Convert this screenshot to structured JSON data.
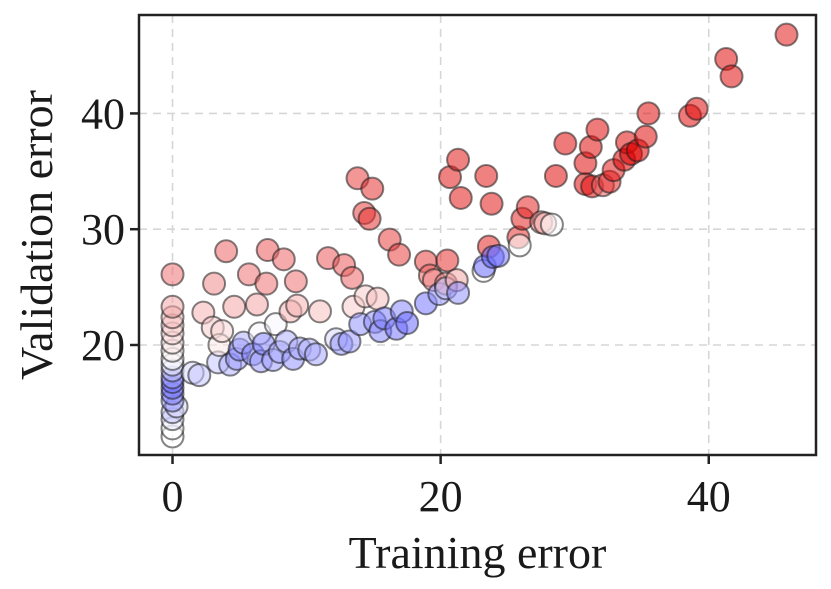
{
  "chart_data": {
    "type": "scatter",
    "xlabel": "Training error",
    "ylabel": "Validation error",
    "xlim": [
      -2.5,
      48
    ],
    "ylim": [
      10.5,
      48.5
    ],
    "xticks": [
      0,
      20,
      40
    ],
    "yticks": [
      20,
      30,
      40
    ],
    "grid": true,
    "legend": "none",
    "color_scale": {
      "low": "#3b3bff",
      "mid": "#ffffff",
      "high": "#e00000"
    },
    "points": [
      {
        "x": 0,
        "y": 12.1,
        "c": 0.0
      },
      {
        "x": 0,
        "y": 12.8,
        "c": 0.0
      },
      {
        "x": 0,
        "y": 13.6,
        "c": -0.1
      },
      {
        "x": 0,
        "y": 14.2,
        "c": -0.3
      },
      {
        "x": 0.3,
        "y": 14.7,
        "c": -0.2
      },
      {
        "x": 0,
        "y": 15.2,
        "c": -0.5
      },
      {
        "x": 0,
        "y": 15.8,
        "c": -0.6
      },
      {
        "x": 0,
        "y": 16.3,
        "c": -0.7
      },
      {
        "x": 0,
        "y": 16.8,
        "c": -0.7
      },
      {
        "x": 0,
        "y": 17.2,
        "c": -0.5
      },
      {
        "x": 0,
        "y": 17.8,
        "c": -0.3
      },
      {
        "x": 0,
        "y": 18.3,
        "c": -0.1
      },
      {
        "x": 0,
        "y": 18.8,
        "c": 0.0
      },
      {
        "x": 0,
        "y": 19.5,
        "c": 0.05
      },
      {
        "x": 0,
        "y": 20.2,
        "c": 0.1
      },
      {
        "x": 0,
        "y": 21.0,
        "c": 0.15
      },
      {
        "x": 0,
        "y": 21.7,
        "c": 0.2
      },
      {
        "x": 0,
        "y": 22.4,
        "c": 0.25
      },
      {
        "x": 0,
        "y": 23.3,
        "c": 0.35
      },
      {
        "x": 0,
        "y": 26.1,
        "c": 0.55
      },
      {
        "x": 1.5,
        "y": 17.6,
        "c": -0.2
      },
      {
        "x": 2.0,
        "y": 17.4,
        "c": -0.3
      },
      {
        "x": 2.3,
        "y": 22.8,
        "c": 0.3
      },
      {
        "x": 3.0,
        "y": 21.5,
        "c": 0.2
      },
      {
        "x": 3.1,
        "y": 25.3,
        "c": 0.45
      },
      {
        "x": 3.4,
        "y": 18.5,
        "c": -0.3
      },
      {
        "x": 3.5,
        "y": 20.0,
        "c": 0.1
      },
      {
        "x": 3.7,
        "y": 21.2,
        "c": 0.15
      },
      {
        "x": 4.0,
        "y": 28.1,
        "c": 0.6
      },
      {
        "x": 4.3,
        "y": 18.3,
        "c": -0.4
      },
      {
        "x": 4.6,
        "y": 23.3,
        "c": 0.35
      },
      {
        "x": 4.8,
        "y": 18.8,
        "c": -0.5
      },
      {
        "x": 5.0,
        "y": 19.6,
        "c": -0.6
      },
      {
        "x": 5.3,
        "y": 20.2,
        "c": -0.4
      },
      {
        "x": 5.7,
        "y": 26.1,
        "c": 0.55
      },
      {
        "x": 6.0,
        "y": 19.2,
        "c": -0.6
      },
      {
        "x": 6.3,
        "y": 23.5,
        "c": 0.35
      },
      {
        "x": 6.5,
        "y": 21.0,
        "c": -0.05
      },
      {
        "x": 6.6,
        "y": 18.6,
        "c": -0.5
      },
      {
        "x": 6.8,
        "y": 20.1,
        "c": -0.6
      },
      {
        "x": 7.0,
        "y": 25.3,
        "c": 0.55
      },
      {
        "x": 7.1,
        "y": 28.2,
        "c": 0.65
      },
      {
        "x": 7.5,
        "y": 18.7,
        "c": -0.5
      },
      {
        "x": 7.7,
        "y": 21.8,
        "c": -0.05
      },
      {
        "x": 8.0,
        "y": 19.4,
        "c": -0.45
      },
      {
        "x": 8.3,
        "y": 27.4,
        "c": 0.6
      },
      {
        "x": 8.5,
        "y": 20.3,
        "c": -0.4
      },
      {
        "x": 8.8,
        "y": 22.9,
        "c": 0.3
      },
      {
        "x": 9.0,
        "y": 18.8,
        "c": -0.55
      },
      {
        "x": 9.2,
        "y": 25.5,
        "c": 0.55
      },
      {
        "x": 9.3,
        "y": 23.4,
        "c": 0.3
      },
      {
        "x": 9.5,
        "y": 19.7,
        "c": -0.45
      },
      {
        "x": 10.2,
        "y": 19.6,
        "c": -0.4
      },
      {
        "x": 10.7,
        "y": 19.2,
        "c": -0.45
      },
      {
        "x": 11.0,
        "y": 22.9,
        "c": 0.25
      },
      {
        "x": 11.6,
        "y": 27.5,
        "c": 0.65
      },
      {
        "x": 12.2,
        "y": 20.5,
        "c": -0.2
      },
      {
        "x": 12.6,
        "y": 20.1,
        "c": -0.55
      },
      {
        "x": 12.8,
        "y": 26.9,
        "c": 0.65
      },
      {
        "x": 13.2,
        "y": 20.3,
        "c": -0.5
      },
      {
        "x": 13.4,
        "y": 25.8,
        "c": 0.6
      },
      {
        "x": 13.5,
        "y": 23.3,
        "c": 0.2
      },
      {
        "x": 13.8,
        "y": 34.4,
        "c": 0.75
      },
      {
        "x": 14.0,
        "y": 21.8,
        "c": -0.55
      },
      {
        "x": 14.3,
        "y": 31.4,
        "c": 0.75
      },
      {
        "x": 14.4,
        "y": 24.2,
        "c": 0.2
      },
      {
        "x": 14.7,
        "y": 30.9,
        "c": 0.8
      },
      {
        "x": 14.9,
        "y": 33.5,
        "c": 0.8
      },
      {
        "x": 15.1,
        "y": 22.0,
        "c": -0.55
      },
      {
        "x": 15.3,
        "y": 24.0,
        "c": 0.25
      },
      {
        "x": 15.5,
        "y": 21.2,
        "c": -0.6
      },
      {
        "x": 15.8,
        "y": 22.3,
        "c": -0.65
      },
      {
        "x": 16.2,
        "y": 29.1,
        "c": 0.75
      },
      {
        "x": 16.7,
        "y": 21.4,
        "c": -0.7
      },
      {
        "x": 16.9,
        "y": 27.8,
        "c": 0.75
      },
      {
        "x": 17.1,
        "y": 22.9,
        "c": -0.6
      },
      {
        "x": 17.5,
        "y": 21.9,
        "c": -0.75
      },
      {
        "x": 18.9,
        "y": 27.2,
        "c": 0.75
      },
      {
        "x": 18.9,
        "y": 23.6,
        "c": -0.7
      },
      {
        "x": 19.2,
        "y": 26.0,
        "c": 0.6
      },
      {
        "x": 19.5,
        "y": 25.6,
        "c": 0.45
      },
      {
        "x": 19.9,
        "y": 24.4,
        "c": -0.55
      },
      {
        "x": 20.4,
        "y": 25.3,
        "c": 0.45
      },
      {
        "x": 20.4,
        "y": 24.9,
        "c": -0.3
      },
      {
        "x": 20.5,
        "y": 27.3,
        "c": 0.8
      },
      {
        "x": 20.7,
        "y": 34.5,
        "c": 0.9
      },
      {
        "x": 21.2,
        "y": 25.6,
        "c": 0.35
      },
      {
        "x": 21.3,
        "y": 24.5,
        "c": -0.55
      },
      {
        "x": 21.3,
        "y": 36.0,
        "c": 0.9
      },
      {
        "x": 21.5,
        "y": 32.7,
        "c": 0.9
      },
      {
        "x": 23.2,
        "y": 26.4,
        "c": 0.0
      },
      {
        "x": 23.3,
        "y": 26.8,
        "c": -0.75
      },
      {
        "x": 23.4,
        "y": 34.6,
        "c": 0.9
      },
      {
        "x": 23.6,
        "y": 28.5,
        "c": 0.85
      },
      {
        "x": 23.8,
        "y": 32.2,
        "c": 0.9
      },
      {
        "x": 23.9,
        "y": 27.6,
        "c": -0.8
      },
      {
        "x": 24.3,
        "y": 27.7,
        "c": -0.7
      },
      {
        "x": 25.8,
        "y": 29.3,
        "c": 0.8
      },
      {
        "x": 25.9,
        "y": 28.6,
        "c": 0.0
      },
      {
        "x": 26.1,
        "y": 30.9,
        "c": 0.85
      },
      {
        "x": 26.5,
        "y": 31.9,
        "c": 0.85
      },
      {
        "x": 27.5,
        "y": 30.6,
        "c": 0.5
      },
      {
        "x": 27.8,
        "y": 30.5,
        "c": 0.3
      },
      {
        "x": 28.3,
        "y": 30.4,
        "c": 0.0
      },
      {
        "x": 28.6,
        "y": 34.6,
        "c": 0.95
      },
      {
        "x": 29.3,
        "y": 37.4,
        "c": 0.95
      },
      {
        "x": 30.8,
        "y": 33.9,
        "c": 0.95
      },
      {
        "x": 30.8,
        "y": 35.7,
        "c": 0.95
      },
      {
        "x": 31.2,
        "y": 37.1,
        "c": 0.95
      },
      {
        "x": 31.3,
        "y": 33.7,
        "c": 0.95
      },
      {
        "x": 31.7,
        "y": 38.6,
        "c": 0.95
      },
      {
        "x": 32.1,
        "y": 33.8,
        "c": 0.6
      },
      {
        "x": 32.6,
        "y": 34.1,
        "c": 0.85
      },
      {
        "x": 32.9,
        "y": 35.1,
        "c": 0.9
      },
      {
        "x": 33.7,
        "y": 36.0,
        "c": 1.0
      },
      {
        "x": 33.9,
        "y": 37.5,
        "c": 0.95
      },
      {
        "x": 34.2,
        "y": 36.5,
        "c": 1.0
      },
      {
        "x": 34.7,
        "y": 36.8,
        "c": 1.0
      },
      {
        "x": 35.3,
        "y": 38.0,
        "c": 0.95
      },
      {
        "x": 35.5,
        "y": 40.0,
        "c": 0.95
      },
      {
        "x": 38.6,
        "y": 39.8,
        "c": 0.95
      },
      {
        "x": 39.1,
        "y": 40.4,
        "c": 0.95
      },
      {
        "x": 41.3,
        "y": 44.7,
        "c": 0.95
      },
      {
        "x": 41.7,
        "y": 43.2,
        "c": 0.95
      },
      {
        "x": 45.8,
        "y": 46.8,
        "c": 0.9
      }
    ]
  }
}
